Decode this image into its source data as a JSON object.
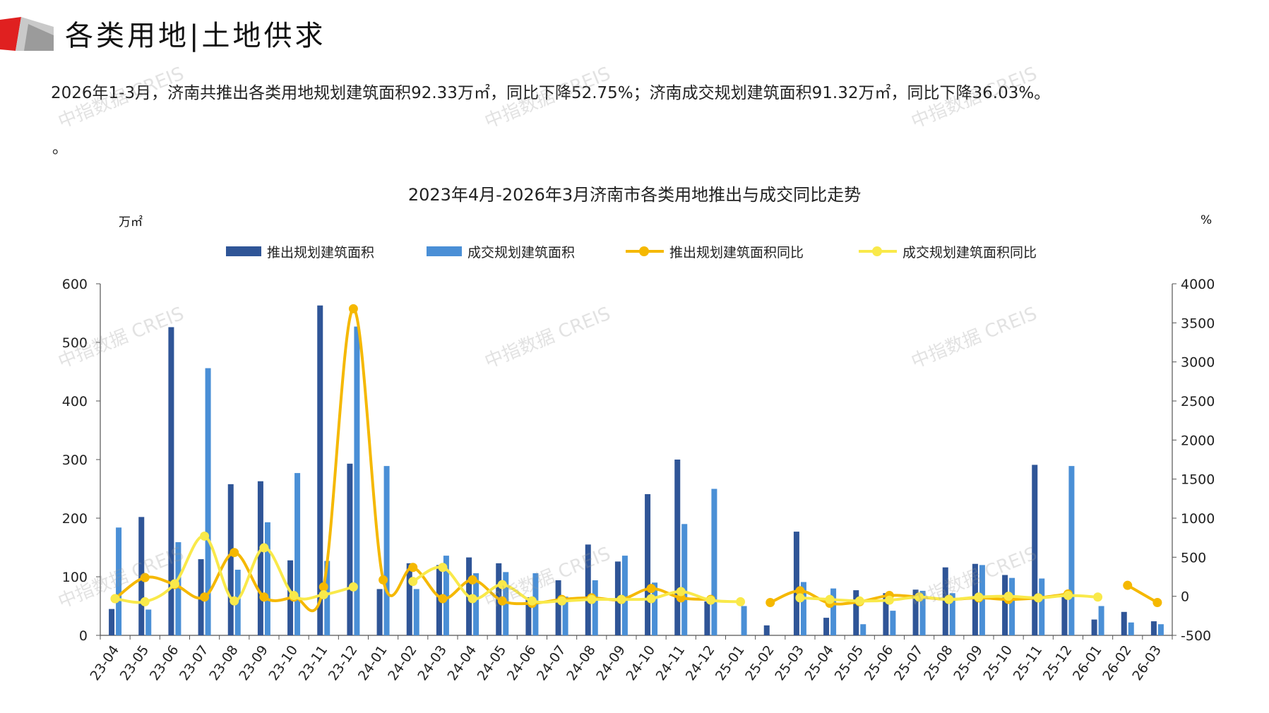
{
  "header": {
    "title": "各类用地|土地供求"
  },
  "summary": {
    "text": "2026年1-3月，济南共推出各类用地规划建筑面积92.33万㎡，同比下降52.75%；济南成交规划建筑面积91.32万㎡，同比下降36.03%。",
    "extra": "。"
  },
  "watermark": "中指数据 CREIS",
  "colors": {
    "push_bar": "#2f5597",
    "deal_bar": "#4a8fd6",
    "push_line": "#f5b800",
    "deal_line": "#f9e94a",
    "brand_red": "#e02020"
  },
  "chart_data": {
    "type": "bar",
    "title": "2023年4月-2026年3月济南市各类用地推出与成交同比走势",
    "ylabel_left": "万㎡",
    "ylabel_right": "%",
    "ylim_left": [
      0,
      600
    ],
    "ylim_right": [
      -500,
      4000
    ],
    "yticks_left": [
      "0",
      "100",
      "200",
      "300",
      "400",
      "500",
      "600"
    ],
    "yticks_right": [
      "-500",
      "0",
      "500",
      "1000",
      "1500",
      "2000",
      "2500",
      "3000",
      "3500",
      "4000"
    ],
    "categories": [
      "23-04",
      "23-05",
      "23-06",
      "23-07",
      "23-08",
      "23-09",
      "23-10",
      "23-11",
      "23-12",
      "24-01",
      "24-02",
      "24-03",
      "24-04",
      "24-05",
      "24-06",
      "24-07",
      "24-08",
      "24-09",
      "24-10",
      "24-11",
      "24-12",
      "25-01",
      "25-02",
      "25-03",
      "25-04",
      "25-05",
      "25-06",
      "25-07",
      "25-08",
      "25-09",
      "25-10",
      "25-11",
      "25-12",
      "26-01",
      "26-02",
      "26-03"
    ],
    "legend": [
      "推出规划建筑面积",
      "成交规划建筑面积",
      "推出规划建筑面积同比",
      "成交规划建筑面积同比"
    ],
    "legend_position": "top",
    "series": [
      {
        "name": "推出规划建筑面积",
        "type": "bar",
        "axis": "left",
        "values": [
          45,
          202,
          526,
          130,
          258,
          263,
          128,
          563,
          293,
          79,
          123,
          120,
          133,
          123,
          65,
          94,
          155,
          126,
          241,
          300,
          58,
          0,
          17,
          177,
          30,
          77,
          72,
          78,
          116,
          122,
          103,
          291,
          68,
          27,
          40,
          24
        ]
      },
      {
        "name": "成交规划建筑面积",
        "type": "bar",
        "axis": "left",
        "values": [
          184,
          44,
          159,
          456,
          112,
          193,
          277,
          127,
          527,
          289,
          79,
          136,
          106,
          108,
          106,
          66,
          94,
          136,
          90,
          190,
          250,
          50,
          0,
          91,
          80,
          19,
          42,
          76,
          72,
          120,
          98,
          97,
          289,
          50,
          22,
          19
        ]
      },
      {
        "name": "推出规划建筑面积同比",
        "type": "line",
        "axis": "right",
        "values": [
          -30,
          240,
          150,
          -10,
          560,
          -10,
          -10,
          120,
          3680,
          210,
          370,
          -30,
          210,
          -60,
          -90,
          -40,
          -20,
          -40,
          100,
          -20,
          -40,
          null,
          -80,
          70,
          -90,
          -70,
          10,
          -10,
          -40,
          -20,
          -40,
          -20,
          30,
          null,
          140,
          -80
        ]
      },
      {
        "name": "成交规划建筑面积同比",
        "type": "line",
        "axis": "right",
        "values": [
          -30,
          -70,
          160,
          770,
          -60,
          620,
          10,
          20,
          120,
          null,
          190,
          370,
          -30,
          150,
          -60,
          -60,
          -40,
          -40,
          -30,
          60,
          -50,
          -70,
          null,
          -20,
          -40,
          -60,
          -50,
          -10,
          -40,
          -10,
          0,
          -20,
          10,
          -10,
          null,
          null
        ]
      }
    ]
  }
}
